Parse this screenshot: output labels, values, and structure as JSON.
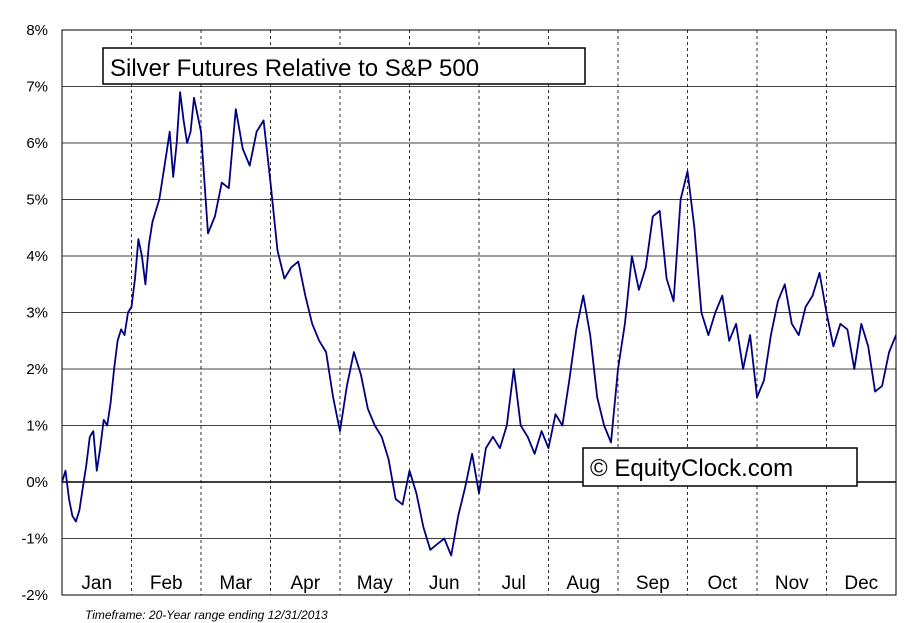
{
  "chart_data": {
    "type": "line",
    "title": "Silver Futures Relative to S&P 500",
    "watermark": "© EquityClock.com",
    "footnote": "Timeframe: 20-Year range ending 12/31/2013",
    "y_ticks": [
      "8%",
      "7%",
      "6%",
      "5%",
      "4%",
      "3%",
      "2%",
      "1%",
      "0%",
      "-1%",
      "-2%"
    ],
    "ylim": [
      -2,
      8
    ],
    "x_ticks": [
      "Jan",
      "Feb",
      "Mar",
      "Apr",
      "May",
      "Jun",
      "Jul",
      "Aug",
      "Sep",
      "Oct",
      "Nov",
      "Dec"
    ],
    "xlim": [
      0,
      12
    ],
    "grid": true,
    "line_color": "#000080",
    "series": [
      {
        "x": [
          0,
          0.05,
          0.1,
          0.15,
          0.2,
          0.25,
          0.3,
          0.35,
          0.4,
          0.45,
          0.5,
          0.55,
          0.6,
          0.65,
          0.7,
          0.75,
          0.8,
          0.85,
          0.9,
          0.95,
          1.0,
          1.05,
          1.1,
          1.15,
          1.2,
          1.25,
          1.3,
          1.35,
          1.4,
          1.45,
          1.5,
          1.55,
          1.6,
          1.65,
          1.7,
          1.75,
          1.8,
          1.85,
          1.9,
          1.95,
          2.0,
          2.1,
          2.2,
          2.3,
          2.4,
          2.5,
          2.6,
          2.7,
          2.8,
          2.9,
          3.0,
          3.1,
          3.2,
          3.3,
          3.4,
          3.5,
          3.6,
          3.7,
          3.8,
          3.9,
          4.0,
          4.1,
          4.2,
          4.3,
          4.4,
          4.5,
          4.6,
          4.7,
          4.8,
          4.9,
          5.0,
          5.1,
          5.2,
          5.3,
          5.4,
          5.5,
          5.6,
          5.7,
          5.8,
          5.9,
          6.0,
          6.1,
          6.2,
          6.3,
          6.4,
          6.5,
          6.6,
          6.7,
          6.8,
          6.9,
          7.0,
          7.1,
          7.2,
          7.3,
          7.4,
          7.5,
          7.6,
          7.7,
          7.8,
          7.9,
          8.0,
          8.1,
          8.2,
          8.3,
          8.4,
          8.5,
          8.6,
          8.7,
          8.8,
          8.9,
          9.0,
          9.1,
          9.2,
          9.3,
          9.4,
          9.5,
          9.6,
          9.7,
          9.8,
          9.9,
          10.0,
          10.1,
          10.2,
          10.3,
          10.4,
          10.5,
          10.6,
          10.7,
          10.8,
          10.9,
          11.0,
          11.1,
          11.2,
          11.3,
          11.4,
          11.5,
          11.6,
          11.7,
          11.8,
          11.9,
          12.0
        ],
        "y": [
          0.0,
          0.2,
          -0.3,
          -0.6,
          -0.7,
          -0.5,
          -0.1,
          0.3,
          0.8,
          0.9,
          0.2,
          0.6,
          1.1,
          1.0,
          1.4,
          2.0,
          2.5,
          2.7,
          2.6,
          3.0,
          3.1,
          3.6,
          4.3,
          4.0,
          3.5,
          4.2,
          4.6,
          4.8,
          5.0,
          5.4,
          5.8,
          6.2,
          5.4,
          6.0,
          6.9,
          6.4,
          6.0,
          6.2,
          6.8,
          6.5,
          6.2,
          4.4,
          4.7,
          5.3,
          5.2,
          6.6,
          5.9,
          5.6,
          6.2,
          6.4,
          5.3,
          4.1,
          3.6,
          3.8,
          3.9,
          3.3,
          2.8,
          2.5,
          2.3,
          1.5,
          0.9,
          1.7,
          2.3,
          1.9,
          1.3,
          1.0,
          0.8,
          0.4,
          -0.3,
          -0.4,
          0.2,
          -0.2,
          -0.8,
          -1.2,
          -1.1,
          -1.0,
          -1.3,
          -0.6,
          -0.1,
          0.5,
          -0.2,
          0.6,
          0.8,
          0.6,
          1.0,
          2.0,
          1.0,
          0.8,
          0.5,
          0.9,
          0.6,
          1.2,
          1.0,
          1.8,
          2.7,
          3.3,
          2.6,
          1.5,
          1.0,
          0.7,
          2.0,
          2.8,
          4.0,
          3.4,
          3.8,
          4.7,
          4.8,
          3.6,
          3.2,
          5.0,
          5.5,
          4.5,
          3.0,
          2.6,
          3.0,
          3.3,
          2.5,
          2.8,
          2.0,
          2.6,
          1.5,
          1.8,
          2.6,
          3.2,
          3.5,
          2.8,
          2.6,
          3.1,
          3.3,
          3.7,
          3.0,
          2.4,
          2.8,
          2.7,
          2.0,
          2.8,
          2.4,
          1.6,
          1.7,
          2.3,
          2.6
        ]
      }
    ]
  }
}
